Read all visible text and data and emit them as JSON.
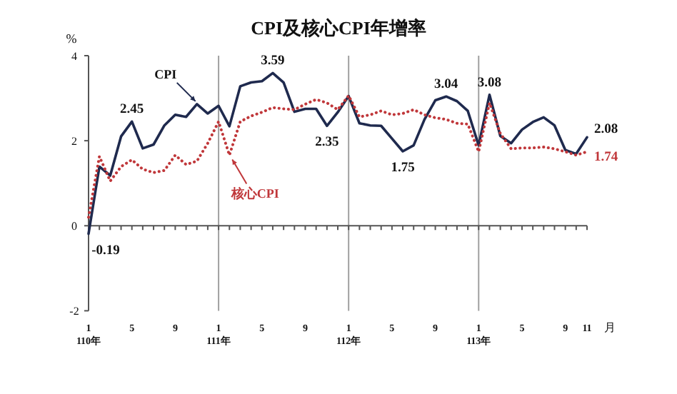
{
  "chart_data": {
    "type": "line",
    "title": "CPI及核心CPI年增率",
    "ylabel": "%",
    "xlabel": "月",
    "categories": [
      "1\n110年",
      null,
      null,
      null,
      "5",
      null,
      null,
      null,
      "9",
      null,
      null,
      null,
      "1\n111年",
      null,
      null,
      null,
      "5",
      null,
      null,
      null,
      "9",
      null,
      null,
      null,
      "1\n112年",
      null,
      null,
      null,
      "5",
      null,
      null,
      null,
      "9",
      null,
      null,
      null,
      "1\n113年",
      null,
      null,
      null,
      "5",
      null,
      null,
      null,
      "9",
      null,
      "11"
    ],
    "ylim": [
      -2,
      4
    ],
    "yticks": [
      -2,
      0,
      2,
      4
    ],
    "grid": false,
    "marker": "none",
    "ref_lines": [
      {
        "axis": "x",
        "value": "1\n111年",
        "color": "#a0a0a0"
      },
      {
        "axis": "x",
        "value": "1\n112年",
        "color": "#a0a0a0"
      },
      {
        "axis": "x",
        "value": "1\n113年",
        "color": "#a0a0a0"
      }
    ],
    "series": [
      {
        "name": "CPI",
        "color": "#1f2a4e",
        "line_style": "solid",
        "values": [
          -0.19,
          1.39,
          1.18,
          2.1,
          2.45,
          1.82,
          1.91,
          2.36,
          2.61,
          2.56,
          2.86,
          2.64,
          2.82,
          2.34,
          3.28,
          3.37,
          3.4,
          3.59,
          3.37,
          2.68,
          2.75,
          2.75,
          2.35,
          2.67,
          3.05,
          2.41,
          2.36,
          2.35,
          2.05,
          1.75,
          1.89,
          2.5,
          2.95,
          3.04,
          2.93,
          2.7,
          1.89,
          3.08,
          2.11,
          1.94,
          2.26,
          2.44,
          2.55,
          2.36,
          1.78,
          1.69,
          2.08
        ],
        "value_labels": [
          "-0.19",
          null,
          null,
          null,
          "2.45",
          null,
          null,
          null,
          null,
          null,
          null,
          null,
          null,
          null,
          null,
          null,
          null,
          "3.59",
          null,
          null,
          null,
          null,
          "2.35",
          null,
          null,
          null,
          null,
          null,
          null,
          "1.75",
          null,
          null,
          null,
          "3.04",
          null,
          null,
          null,
          "3.08",
          null,
          null,
          null,
          null,
          null,
          null,
          null,
          null,
          "2.08"
        ]
      },
      {
        "name": "核心CPI",
        "color": "#c0373a",
        "line_style": "dotted",
        "values": [
          0.2,
          1.63,
          1.05,
          1.39,
          1.55,
          1.33,
          1.25,
          1.3,
          1.66,
          1.44,
          1.52,
          1.94,
          2.45,
          1.66,
          2.45,
          2.58,
          2.67,
          2.78,
          2.75,
          2.73,
          2.86,
          2.97,
          2.89,
          2.73,
          3.06,
          2.56,
          2.61,
          2.7,
          2.61,
          2.64,
          2.73,
          2.61,
          2.54,
          2.5,
          2.41,
          2.39,
          1.74,
          2.89,
          2.17,
          1.81,
          1.83,
          1.83,
          1.85,
          1.81,
          1.74,
          1.66,
          1.74
        ],
        "value_labels": [
          null,
          null,
          null,
          null,
          null,
          null,
          null,
          null,
          null,
          null,
          null,
          null,
          null,
          null,
          null,
          null,
          null,
          null,
          null,
          null,
          null,
          null,
          null,
          null,
          null,
          null,
          null,
          null,
          null,
          null,
          null,
          null,
          null,
          null,
          null,
          null,
          null,
          null,
          null,
          null,
          null,
          null,
          null,
          null,
          null,
          null,
          "1.74"
        ]
      }
    ]
  }
}
